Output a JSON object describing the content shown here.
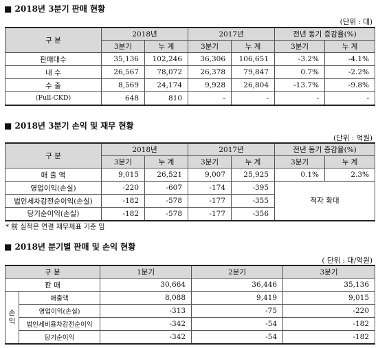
{
  "sections": [
    {
      "title": "■ 2018년 3분기 판매 현황",
      "unit": "(단위 : 대)",
      "table": {
        "header": [
          "구  분",
          "2018년",
          "2017년",
          "전년 동기 증감율(%)"
        ],
        "subheader": [
          "3분기",
          "누 계",
          "3분기",
          "누 계",
          "3분기",
          "누 계"
        ],
        "rows": [
          [
            "판매대수",
            "35,136",
            "102,246",
            "36,306",
            "106,651",
            "-3.2%",
            "-4.1%"
          ],
          [
            "내  수",
            "26,567",
            "78,072",
            "26,378",
            "79,847",
            "0.7%",
            "-2.2%"
          ],
          [
            "수  출",
            "8,569",
            "24,174",
            "9,928",
            "26,804",
            "-13.7%",
            "-9.8%"
          ],
          [
            "(Full-CKD)",
            "648",
            "810",
            "-",
            "-",
            "-",
            "-"
          ]
        ]
      }
    },
    {
      "title": "■ 2018년 3분기 손익 및 재무 현황",
      "unit": "(단위 : 억원)",
      "table": {
        "header": [
          "구  분",
          "2018년",
          "2017년",
          "전년 동기 증감율(%)"
        ],
        "subheader": [
          "3분기",
          "누 계",
          "3분기",
          "누 계",
          "3분기",
          "누 계"
        ],
        "rows": [
          [
            "매 출 액",
            "9,015",
            "26,521",
            "9,007",
            "25,925",
            "0.1%",
            "2.3%"
          ],
          [
            "영업이익(손실)",
            "-220",
            "-607",
            "-174",
            "-395",
            "적자 확대"
          ],
          [
            "법인세차감전순이익(손실)",
            "-182",
            "-578",
            "-177",
            "-355"
          ],
          [
            "당기순이익(손실)",
            "-182",
            "-578",
            "-177",
            "-356"
          ]
        ]
      },
      "note": "* 前 실적은 연결 재무제표 기준 임"
    },
    {
      "title": "■ 2018년 분기별 판매 및 손익 현황",
      "unit": "( 단위 : 대/억원)",
      "table": {
        "header": [
          "구  분",
          "1분기",
          "2분기",
          "3분기"
        ],
        "rows": [
          [
            "판  매",
            "30,664",
            "36,446",
            "35,136"
          ]
        ],
        "group": "손익",
        "group_rows": [
          [
            "매출액",
            "8,088",
            "9,419",
            "9,015"
          ],
          [
            "영업이익(손실)",
            "-313",
            "-75",
            "-220"
          ],
          [
            "법인세비용차감전순이익",
            "-342",
            "-54",
            "-182"
          ],
          [
            "당기순이익",
            "-342",
            "-54",
            "-182"
          ]
        ]
      }
    }
  ]
}
